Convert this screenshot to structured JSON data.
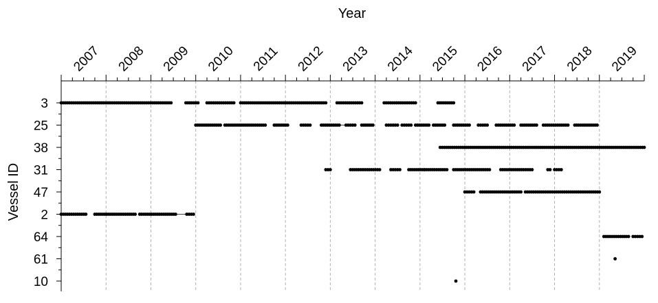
{
  "chart_data": {
    "type": "scatter",
    "title": "",
    "xlabel": "Year",
    "ylabel": "Vessel ID",
    "x_axis_position": "top",
    "xlim": [
      2006,
      2019
    ],
    "x_tick_labels": [
      "2007",
      "2008",
      "2009",
      "2010",
      "2011",
      "2012",
      "2013",
      "2014",
      "2015",
      "2016",
      "2017",
      "2018",
      "2019"
    ],
    "categories": [
      "3",
      "25",
      "38",
      "31",
      "47",
      "2",
      "64",
      "61",
      "10"
    ],
    "grid": "vertical dashed at year boundaries",
    "marker_color": "#000000",
    "series": [
      {
        "vessel": "3",
        "segments": [
          [
            2006.0,
            2008.45
          ],
          [
            2008.78,
            2009.05
          ],
          [
            2009.25,
            2009.85
          ],
          [
            2010.0,
            2011.0
          ],
          [
            2011.0,
            2011.9
          ],
          [
            2012.15,
            2012.7
          ],
          [
            2013.2,
            2013.9
          ],
          [
            2014.4,
            2014.75
          ]
        ],
        "lines": [
          [
            2011.0,
            2011.9
          ]
        ]
      },
      {
        "vessel": "25",
        "segments": [
          [
            2009.0,
            2009.55
          ],
          [
            2009.65,
            2010.55
          ],
          [
            2010.75,
            2011.05
          ],
          [
            2011.35,
            2011.55
          ],
          [
            2011.8,
            2012.2
          ],
          [
            2012.35,
            2012.55
          ],
          [
            2012.7,
            2012.95
          ],
          [
            2013.25,
            2013.5
          ],
          [
            2013.6,
            2013.8
          ],
          [
            2013.9,
            2014.2
          ],
          [
            2014.3,
            2014.55
          ],
          [
            2014.75,
            2015.1
          ],
          [
            2015.3,
            2015.5
          ],
          [
            2015.7,
            2016.1
          ],
          [
            2016.25,
            2016.6
          ],
          [
            2016.75,
            2017.3
          ],
          [
            2017.45,
            2017.95
          ]
        ],
        "lines": [
          [
            2012.0,
            2012.35
          ]
        ]
      },
      {
        "vessel": "38",
        "segments": [
          [
            2014.45,
            2019.0
          ]
        ],
        "lines": [
          [
            2014.45,
            2019.0
          ]
        ]
      },
      {
        "vessel": "31",
        "segments": [
          [
            2011.9,
            2012.0
          ],
          [
            2012.45,
            2013.1
          ],
          [
            2013.35,
            2013.55
          ],
          [
            2013.75,
            2014.1
          ],
          [
            2014.1,
            2014.6
          ],
          [
            2014.75,
            2015.55
          ],
          [
            2015.8,
            2016.5
          ],
          [
            2016.85,
            2016.9
          ],
          [
            2017.0,
            2017.15
          ]
        ],
        "lines": [
          [
            2014.05,
            2014.6
          ]
        ]
      },
      {
        "vessel": "47",
        "segments": [
          [
            2015.0,
            2015.2
          ],
          [
            2015.35,
            2016.25
          ],
          [
            2016.35,
            2018.0
          ]
        ],
        "lines": []
      },
      {
        "vessel": "2",
        "segments": [
          [
            2006.0,
            2006.55
          ],
          [
            2006.75,
            2007.65
          ],
          [
            2007.75,
            2008.55
          ],
          [
            2008.8,
            2008.95
          ]
        ],
        "lines": [
          [
            2008.55,
            2008.8
          ]
        ]
      },
      {
        "vessel": "64",
        "segments": [
          [
            2018.1,
            2018.65
          ],
          [
            2018.75,
            2018.95
          ]
        ],
        "lines": []
      },
      {
        "vessel": "61",
        "segments": [
          [
            2018.35,
            2018.35
          ]
        ],
        "lines": []
      },
      {
        "vessel": "10",
        "segments": [
          [
            2014.8,
            2014.8
          ]
        ],
        "lines": []
      }
    ]
  }
}
